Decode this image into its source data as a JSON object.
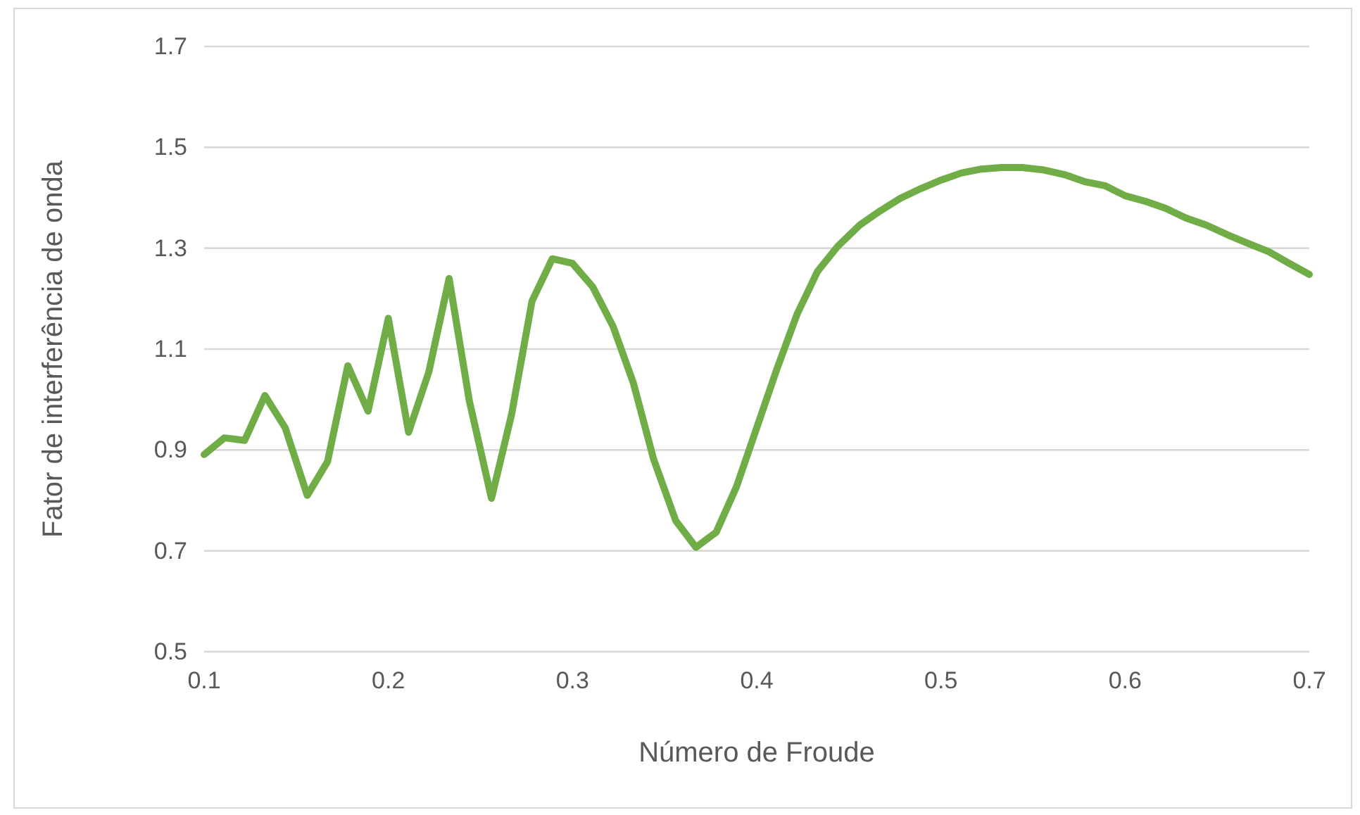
{
  "chart_data": {
    "type": "line",
    "xlabel": "Número de Froude",
    "ylabel": "Fator de interferência de onda",
    "x": [
      0.1,
      0.111,
      0.122,
      0.133,
      0.144,
      0.156,
      0.167,
      0.178,
      0.189,
      0.2,
      0.211,
      0.222,
      0.233,
      0.244,
      0.256,
      0.267,
      0.278,
      0.289,
      0.3,
      0.311,
      0.322,
      0.333,
      0.344,
      0.356,
      0.367,
      0.378,
      0.389,
      0.4,
      0.411,
      0.422,
      0.433,
      0.444,
      0.456,
      0.467,
      0.478,
      0.489,
      0.5,
      0.511,
      0.522,
      0.533,
      0.544,
      0.556,
      0.567,
      0.578,
      0.589,
      0.6,
      0.611,
      0.622,
      0.633,
      0.644,
      0.656,
      0.667,
      0.678,
      0.689,
      0.7
    ],
    "series": [
      {
        "color": "#70ad47",
        "values": [
          0.891,
          0.924,
          0.919,
          1.008,
          0.944,
          0.81,
          0.877,
          1.067,
          0.977,
          1.161,
          0.935,
          1.055,
          1.24,
          0.997,
          0.804,
          0.972,
          1.195,
          1.279,
          1.27,
          1.223,
          1.145,
          1.033,
          0.882,
          0.76,
          0.707,
          0.737,
          0.827,
          0.944,
          1.061,
          1.17,
          1.254,
          1.304,
          1.346,
          1.374,
          1.399,
          1.418,
          1.435,
          1.449,
          1.457,
          1.46,
          1.46,
          1.455,
          1.446,
          1.432,
          1.424,
          1.404,
          1.393,
          1.379,
          1.36,
          1.346,
          1.326,
          1.309,
          1.293,
          1.27,
          1.248
        ]
      }
    ],
    "xlim": [
      0.1,
      0.7
    ],
    "xticks": [
      0.1,
      0.2,
      0.3,
      0.4,
      0.5,
      0.6,
      0.7
    ],
    "ylim": [
      0.5,
      1.7
    ],
    "yticks": [
      0.5,
      0.7,
      0.9,
      1.1,
      1.3,
      1.5,
      1.7
    ],
    "grid": "y",
    "marker": "none",
    "line_style": "solid"
  }
}
